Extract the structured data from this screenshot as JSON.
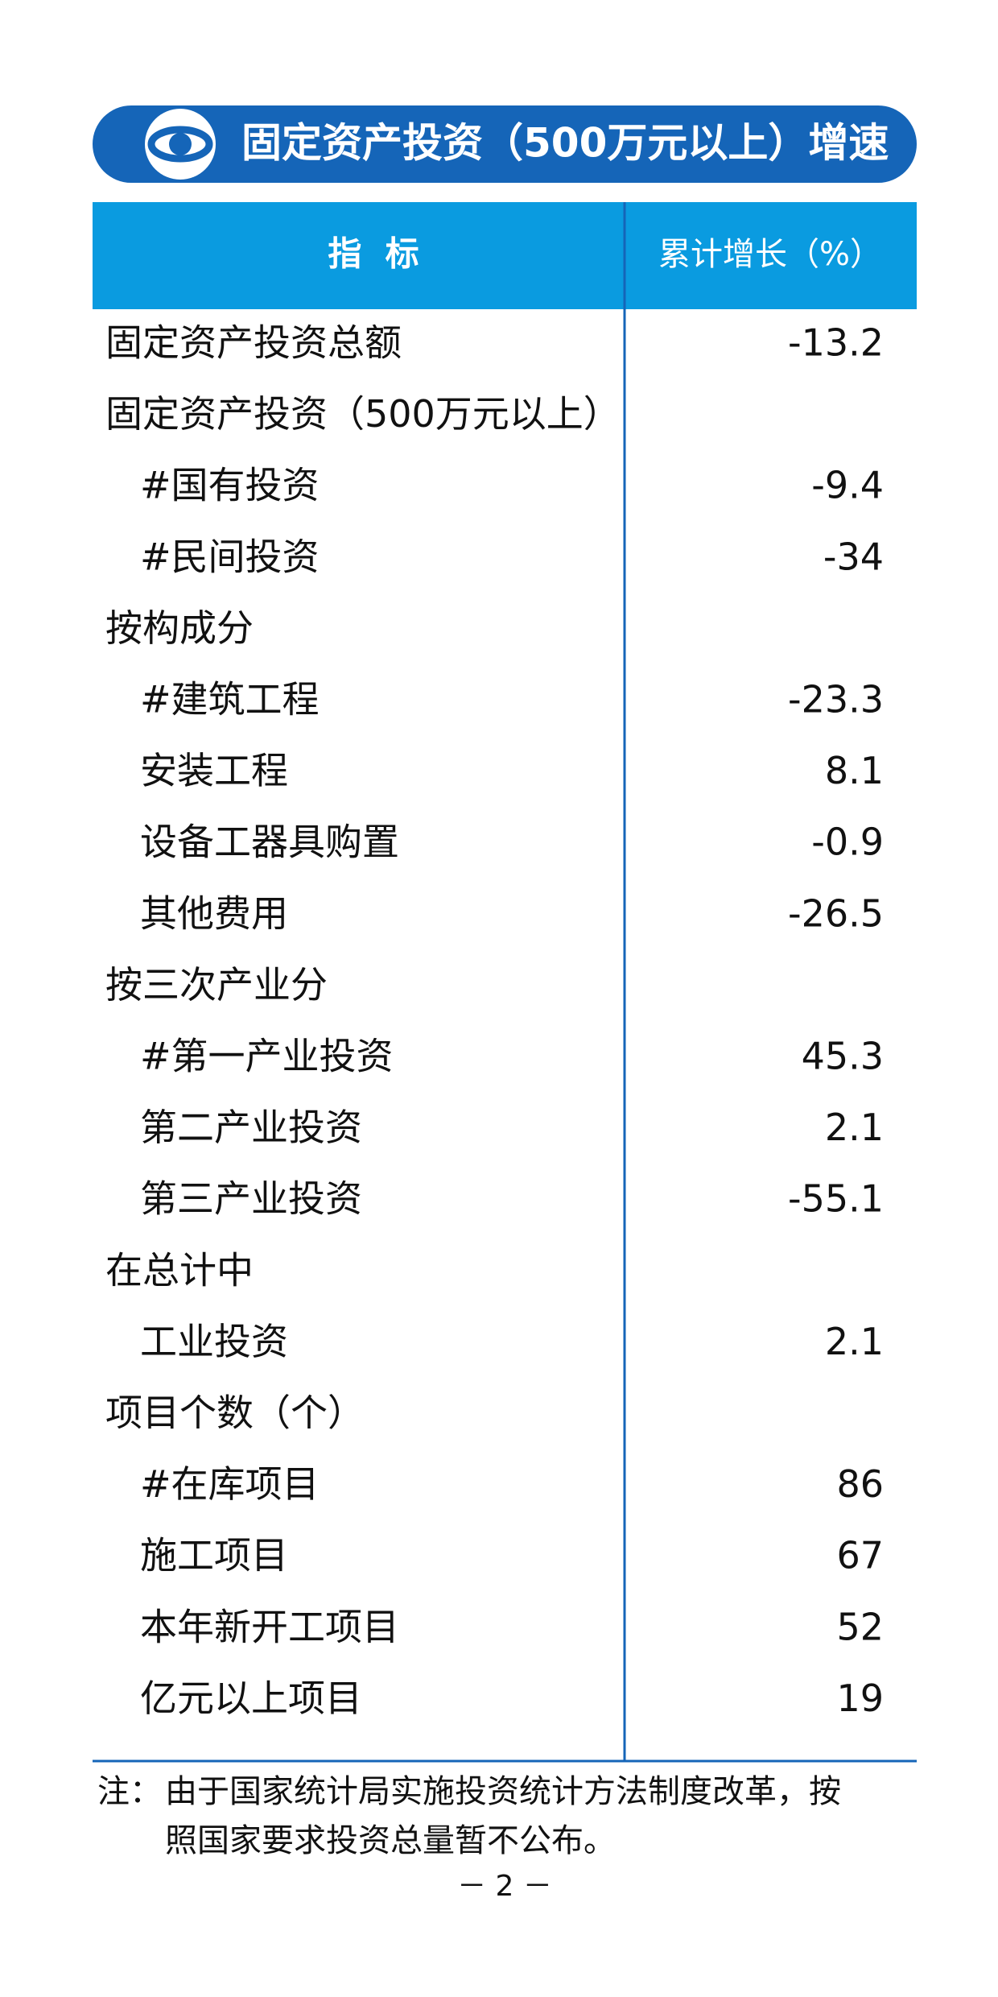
{
  "header": {
    "title": "固定资产投资（500万元以上）增速"
  },
  "table": {
    "columns": [
      "指  标",
      "累计增长（%）"
    ],
    "sections": [
      {
        "label": "固定资产投资总额",
        "value": -13.2
      },
      {
        "label": "固定资产投资（500万元以上）",
        "items": [
          {
            "label": "#国有投资",
            "value": -9.4
          },
          {
            "label": "#民间投资",
            "value": -34
          }
        ]
      },
      {
        "label": "按构成分",
        "items": [
          {
            "label": "#建筑工程",
            "value": -23.3
          },
          {
            "label": "安装工程",
            "value": 8.1
          },
          {
            "label": "设备工器具购置",
            "value": -0.9
          },
          {
            "label": "其他费用",
            "value": -26.5
          }
        ]
      },
      {
        "label": "按三次产业分",
        "items": [
          {
            "label": "#第一产业投资",
            "value": 45.3
          },
          {
            "label": "第二产业投资",
            "value": 2.1
          },
          {
            "label": "第三产业投资",
            "value": -55.1
          }
        ]
      },
      {
        "label": "在总计中",
        "items": [
          {
            "label": "工业投资",
            "value": 2.1
          }
        ]
      },
      {
        "label": "项目个数（个）",
        "items": [
          {
            "label": "#在库项目",
            "value": 86
          },
          {
            "label": "施工项目",
            "value": 67
          },
          {
            "label": "本年新开工项目",
            "value": 52
          },
          {
            "label": "亿元以上项目",
            "value": 19
          }
        ]
      }
    ]
  },
  "note": {
    "label": "注：",
    "lines": [
      "由于国家统计局实施投资统计方法制度改革，按",
      "照国家要求投资总量暂不公布。"
    ]
  },
  "footer": {
    "page": "－ 2 －"
  }
}
